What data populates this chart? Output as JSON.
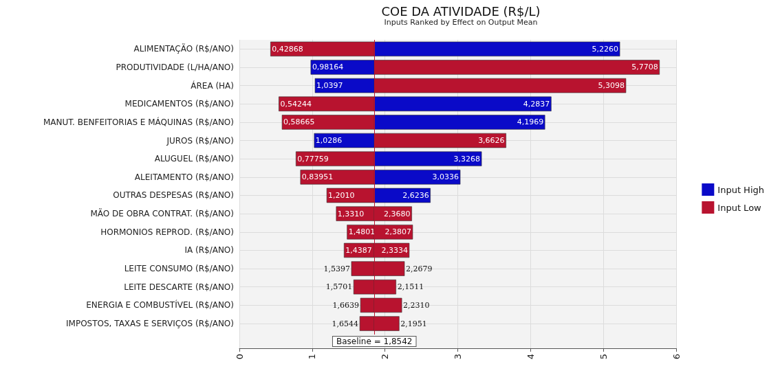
{
  "chart_data": {
    "type": "bar",
    "orientation": "horizontal",
    "title": "COE DA ATIVIDADE (R$/L)",
    "subtitle": "Inputs Ranked by Effect on Output Mean",
    "categories": [
      "ALIMENTAÇÃO (R$/ANO)",
      "PRODUTIVIDADE (L/HA/ANO)",
      "ÁREA (HA)",
      "MEDICAMENTOS (R$/ANO)",
      "MANUT. BENFEITORIAS E MÁQUINAS (R$/ANO)",
      "JUROS (R$/ANO)",
      "ALUGUEL (R$/ANO)",
      "ALEITAMENTO (R$/ANO)",
      "OUTRAS DESPESAS (R$/ANO)",
      "MÃO DE OBRA CONTRAT. (R$/ANO)",
      "HORMONIOS REPROD. (R$/ANO)",
      "IA (R$/ANO)",
      "LEITE CONSUMO (R$/ANO)",
      "LEITE DESCARTE (R$/ANO)",
      "ENERGIA E COMBUSTÍVEL (R$/ANO)",
      "IMPOSTOS, TAXAS E SERVIÇOS (R$/ANO)"
    ],
    "series": [
      {
        "name": "Input High",
        "color": "#0a0ac8",
        "base": [
          1.8542,
          1.8542,
          1.8542,
          1.8542,
          1.8542,
          1.8542,
          1.8542,
          1.8542,
          1.8542,
          null,
          null,
          null,
          null,
          null,
          null,
          null
        ],
        "values": [
          3.3718,
          -0.87256,
          -0.8145,
          2.4295,
          2.3427,
          -0.8256,
          1.4726,
          1.1794,
          0.7694,
          null,
          null,
          null,
          null,
          null,
          null,
          null
        ],
        "value_labels": [
          "5,2260",
          "0,98164",
          "1,0397",
          "4,2837",
          "4,1969",
          "1,0286",
          "3,3268",
          "3,0336",
          "2,6236",
          null,
          null,
          null,
          null,
          null,
          null,
          null
        ]
      },
      {
        "name": "Input Low",
        "color": "#b8132f",
        "base": [
          1.8542,
          1.8542,
          1.8542,
          1.8542,
          1.8542,
          1.8542,
          1.8542,
          1.8542,
          1.8542,
          1.8542,
          1.8542,
          1.8542,
          1.8542,
          1.8542,
          1.8542,
          1.8542
        ],
        "values": [
          -1.42552,
          3.9166,
          3.4556,
          -1.31176,
          -1.26755,
          1.8084,
          -1.07661,
          -1.01469,
          -0.6532,
          -0.5232,
          -0.3741,
          -0.4155,
          -0.3145,
          -0.2841,
          -0.1903,
          -0.1998
        ],
        "value_labels": [
          "0,42868",
          "5,7708",
          "5,3098",
          "0,54244",
          "0,58665",
          "3,6626",
          "0,77759",
          "0,83951",
          "1,2010",
          "1,3310",
          "1,4801",
          "1,4387",
          "1,5397",
          "1,5701",
          "1,6639",
          "1,6544"
        ]
      },
      {
        "color": "#b8132f",
        "base": [
          null,
          null,
          null,
          null,
          null,
          null,
          null,
          null,
          null,
          1.8542,
          1.8542,
          1.8542,
          1.8542,
          1.8542,
          1.8542,
          1.8542
        ],
        "values": [
          null,
          null,
          null,
          null,
          null,
          null,
          null,
          null,
          null,
          0.5138,
          0.5265,
          0.4792,
          0.4137,
          0.2969,
          0.3768,
          0.3409
        ],
        "value_labels": [
          null,
          null,
          null,
          null,
          null,
          null,
          null,
          null,
          null,
          "2,3680",
          "2,3807",
          "2,3334",
          "2,2679",
          "2,1511",
          "2,2310",
          "2,1951"
        ]
      }
    ],
    "xlim": [
      0,
      6
    ],
    "xticks": [
      0,
      1,
      2,
      3,
      4,
      5,
      6
    ],
    "ref_lines": [
      {
        "axis": "x",
        "value": 1.8542,
        "label": "Baseline = 1,8542",
        "color": "#b8132f"
      }
    ],
    "grid": true,
    "legend": "right"
  }
}
